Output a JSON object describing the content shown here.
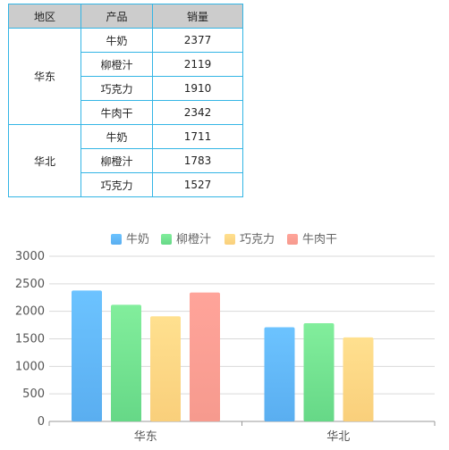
{
  "table": {
    "headers": [
      "地区",
      "产品",
      "销量"
    ],
    "groups": [
      {
        "region": "华东",
        "rows": [
          {
            "product": "牛奶",
            "sales": "2377"
          },
          {
            "product": "柳橙汁",
            "sales": "2119"
          },
          {
            "product": "巧克力",
            "sales": "1910"
          },
          {
            "product": "牛肉干",
            "sales": "2342"
          }
        ]
      },
      {
        "region": "华北",
        "rows": [
          {
            "product": "牛奶",
            "sales": "1711"
          },
          {
            "product": "柳橙汁",
            "sales": "1783"
          },
          {
            "product": "巧克力",
            "sales": "1527"
          }
        ]
      }
    ]
  },
  "chart_data": {
    "type": "bar",
    "categories": [
      "华东",
      "华北"
    ],
    "series": [
      {
        "name": "牛奶",
        "values": [
          2377,
          1711
        ],
        "color_top": "#6cc3ff",
        "color_bottom": "#5aaef0"
      },
      {
        "name": "柳橙汁",
        "values": [
          2119,
          1783
        ],
        "color_top": "#82ee9c",
        "color_bottom": "#66d887"
      },
      {
        "name": "巧克力",
        "values": [
          1910,
          1527
        ],
        "color_top": "#ffe08f",
        "color_bottom": "#f9cf7b"
      },
      {
        "name": "牛肉干",
        "values": [
          2342,
          null
        ],
        "color_top": "#ffa49a",
        "color_bottom": "#f69a8e"
      }
    ],
    "ylim": [
      0,
      3000
    ],
    "yticks": [
      0,
      500,
      1000,
      1500,
      2000,
      2500,
      3000
    ],
    "grid": true,
    "legend": "top-center"
  }
}
